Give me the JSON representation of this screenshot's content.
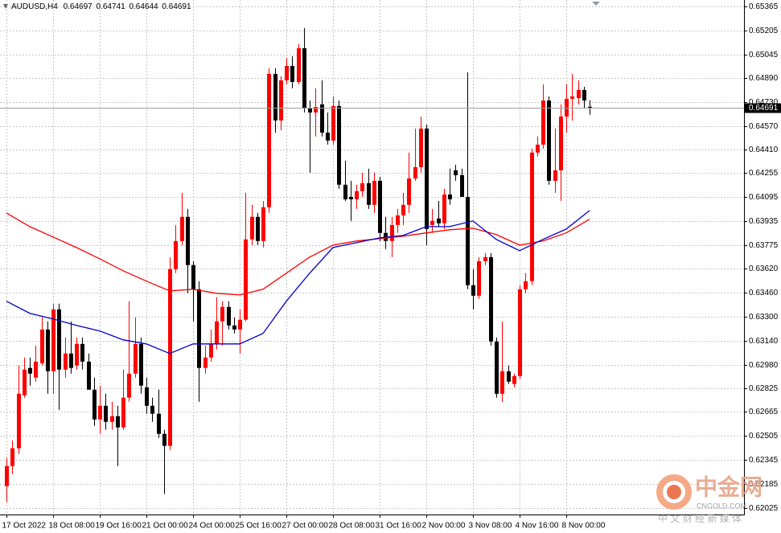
{
  "chart_data": {
    "type": "candlestick",
    "title": "AUDUSD,H4",
    "categories": [
      "17 Oct 2022",
      null,
      null,
      null,
      null,
      null,
      null,
      null,
      "18 Oct 08:00",
      null,
      null,
      null,
      null,
      null,
      null,
      null,
      "19 Oct 16:00",
      null,
      null,
      null,
      null,
      null,
      null,
      null,
      "21 Oct 00:00",
      null,
      null,
      null,
      null,
      null,
      null,
      null,
      "24 Oct 00:00",
      null,
      null,
      null,
      null,
      null,
      null,
      null,
      "25 Oct 16:00",
      null,
      null,
      null,
      null,
      null,
      null,
      null,
      "27 Oct 00:00",
      null,
      null,
      null,
      null,
      null,
      null,
      null,
      "28 Oct 08:00",
      null,
      null,
      null,
      null,
      null,
      null,
      null,
      "31 Oct 16:00",
      null,
      null,
      null,
      null,
      null,
      null,
      null,
      "2 Nov 00:00",
      null,
      null,
      null,
      null,
      null,
      null,
      null,
      "3 Nov 08:00",
      null,
      null,
      null,
      null,
      null,
      null,
      null,
      "4 Nov 16:00",
      null,
      null,
      null,
      null,
      null,
      null,
      null,
      "8 Nov 00:00",
      null,
      null,
      null,
      null
    ],
    "open": [
      0.62171,
      0.62305,
      0.62423,
      0.62776,
      0.62958,
      0.62893,
      0.6299,
      0.63214,
      0.62936,
      0.63348,
      0.62947,
      0.63054,
      0.62974,
      0.63118,
      0.63,
      0.62813,
      0.62615,
      0.62706,
      0.62599,
      0.62637,
      0.62562,
      0.6276,
      0.6292,
      0.63118,
      0.62829,
      0.62706,
      0.62653,
      0.62519,
      0.62439,
      0.63616,
      0.63803,
      0.63964,
      0.63643,
      0.63482,
      0.62958,
      0.63027,
      0.63118,
      0.63268,
      0.63364,
      0.63241,
      0.63214,
      0.63279,
      0.63814,
      0.63964,
      0.63803,
      0.64028,
      0.64916,
      0.64606,
      0.64873,
      0.64969,
      0.64862,
      0.65087,
      0.64686,
      0.64659,
      0.64713,
      0.64525,
      0.64472,
      0.64702,
      0.64178,
      0.64097,
      0.64081,
      0.64135,
      0.64188,
      0.64044,
      0.64204,
      0.63857,
      0.63803,
      0.6391,
      0.63974,
      0.64044,
      0.6422,
      0.64295,
      0.64552,
      0.6391,
      0.63953,
      0.63921,
      0.64113,
      0.64274,
      0.64242,
      0.64097,
      0.63509,
      0.63439,
      0.63669,
      0.63696,
      0.63134,
      0.62786,
      0.62936,
      0.62851,
      0.62904,
      0.63482,
      0.63536,
      0.64392,
      0.64445,
      0.64739,
      0.64204,
      0.64274,
      0.64632,
      0.6475,
      0.64755,
      0.64809,
      0.64697
    ],
    "high": [
      0.62358,
      0.62476,
      0.62974,
      0.63027,
      0.63027,
      0.63107,
      0.63295,
      0.63268,
      0.63386,
      0.63386,
      0.63161,
      0.63268,
      0.63161,
      0.63161,
      0.63054,
      0.62893,
      0.6284,
      0.62786,
      0.62733,
      0.62706,
      0.62947,
      0.63402,
      0.63295,
      0.63161,
      0.62893,
      0.6276,
      0.62813,
      0.62546,
      0.63696,
      0.6391,
      0.64124,
      0.64017,
      0.63669,
      0.63536,
      0.63107,
      0.63214,
      0.63429,
      0.63402,
      0.63402,
      0.63295,
      0.63348,
      0.64124,
      0.64044,
      0.6399,
      0.6407,
      0.64953,
      0.64953,
      0.649,
      0.65023,
      0.65034,
      0.65114,
      0.65221,
      0.64739,
      0.6482,
      0.64873,
      0.64659,
      0.64766,
      0.64739,
      0.64338,
      0.64204,
      0.64178,
      0.64258,
      0.64285,
      0.64258,
      0.64231,
      0.63964,
      0.63964,
      0.64017,
      0.64124,
      0.64392,
      0.64552,
      0.64632,
      0.64579,
      0.64017,
      0.6407,
      0.64151,
      0.64285,
      0.64311,
      0.64285,
      0.64926,
      0.63616,
      0.63696,
      0.63723,
      0.63723,
      0.63161,
      0.63268,
      0.62974,
      0.6292,
      0.63509,
      0.63589,
      0.64418,
      0.64499,
      0.64846,
      0.64766,
      0.64552,
      0.64713,
      0.64846,
      0.64916,
      0.64873,
      0.6483,
      0.64741
    ],
    "low": [
      0.62064,
      0.62251,
      0.62385,
      0.6276,
      0.6284,
      0.62867,
      0.62974,
      0.62786,
      0.62786,
      0.62679,
      0.62893,
      0.6292,
      0.62947,
      0.62947,
      0.6284,
      0.62572,
      0.62519,
      0.62546,
      0.62546,
      0.62305,
      0.62546,
      0.62733,
      0.62893,
      0.62786,
      0.62653,
      0.62599,
      0.62492,
      0.62118,
      0.62412,
      0.63589,
      0.63776,
      0.63455,
      0.63268,
      0.62733,
      0.6292,
      0.63,
      0.63081,
      0.63107,
      0.63214,
      0.63188,
      0.63054,
      0.63268,
      0.63776,
      0.63776,
      0.6376,
      0.6399,
      0.64525,
      0.64541,
      0.64846,
      0.6482,
      0.64846,
      0.64659,
      0.64258,
      0.64499,
      0.64499,
      0.64445,
      0.64445,
      0.64151,
      0.6407,
      0.63937,
      0.64017,
      0.64097,
      0.64017,
      0.6399,
      0.63803,
      0.6375,
      0.63696,
      0.63857,
      0.6391,
      0.6399,
      0.64204,
      0.64258,
      0.63776,
      0.63857,
      0.63899,
      0.63883,
      0.64044,
      0.64204,
      0.64097,
      0.63482,
      0.63348,
      0.63418,
      0.63643,
      0.63107,
      0.6276,
      0.62733,
      0.62851,
      0.62829,
      0.62883,
      0.63455,
      0.63509,
      0.64365,
      0.64418,
      0.64178,
      0.64124,
      0.6407,
      0.64525,
      0.64606,
      0.64713,
      0.64686,
      0.64644
    ],
    "close": [
      0.62305,
      0.62423,
      0.62786,
      0.62947,
      0.6292,
      0.63,
      0.63214,
      0.62936,
      0.63348,
      0.62947,
      0.63054,
      0.62958,
      0.63118,
      0.63,
      0.62813,
      0.62615,
      0.62706,
      0.62599,
      0.62637,
      0.62562,
      0.6276,
      0.6292,
      0.63118,
      0.6284,
      0.62706,
      0.62653,
      0.62519,
      0.62439,
      0.63616,
      0.63803,
      0.63964,
      0.63643,
      0.63482,
      0.62958,
      0.63027,
      0.63118,
      0.63268,
      0.63364,
      0.63241,
      0.63214,
      0.63279,
      0.63814,
      0.63964,
      0.63803,
      0.64028,
      0.64916,
      0.64606,
      0.64873,
      0.64969,
      0.64862,
      0.65087,
      0.64686,
      0.64659,
      0.64696,
      0.64525,
      0.64472,
      0.64702,
      0.64178,
      0.64081,
      0.64081,
      0.64135,
      0.64188,
      0.64044,
      0.64204,
      0.63857,
      0.63803,
      0.6391,
      0.63974,
      0.64044,
      0.6422,
      0.64295,
      0.64552,
      0.63883,
      0.63937,
      0.63921,
      0.64113,
      0.64081,
      0.64242,
      0.64097,
      0.63509,
      0.63439,
      0.63669,
      0.63696,
      0.63134,
      0.62786,
      0.62936,
      0.62867,
      0.62904,
      0.63482,
      0.63536,
      0.64392,
      0.64445,
      0.64739,
      0.64204,
      0.64274,
      0.64632,
      0.6475,
      0.64766,
      0.64809,
      0.64739,
      0.64691
    ],
    "up_color": "#ff0000",
    "down_color": "#000000",
    "series": [
      {
        "color": "#ff0000",
        "x": [
          0,
          4,
          8,
          12,
          16,
          20,
          24,
          28,
          32,
          36,
          40,
          44,
          48,
          52,
          56,
          60,
          64,
          68,
          72,
          76,
          80,
          84,
          88,
          92,
          96,
          100
        ],
        "values": [
          0.6399,
          0.63899,
          0.6383,
          0.6376,
          0.63685,
          0.63605,
          0.63536,
          0.63471,
          0.63482,
          0.63455,
          0.63444,
          0.63482,
          0.63589,
          0.63696,
          0.63776,
          0.63803,
          0.63819,
          0.63835,
          0.63857,
          0.63878,
          0.63889,
          0.63846,
          0.63776,
          0.63803,
          0.63857,
          0.63948
        ]
      },
      {
        "color": "#0000cc",
        "x": [
          0,
          4,
          8,
          12,
          16,
          20,
          24,
          28,
          32,
          36,
          40,
          44,
          48,
          52,
          56,
          60,
          64,
          68,
          72,
          76,
          80,
          84,
          88,
          92,
          96,
          100
        ],
        "values": [
          0.63402,
          0.63322,
          0.63284,
          0.63241,
          0.63204,
          0.63145,
          0.63118,
          0.63054,
          0.63118,
          0.63118,
          0.63118,
          0.63188,
          0.63402,
          0.63589,
          0.6376,
          0.63792,
          0.63824,
          0.6384,
          0.63899,
          0.63899,
          0.63937,
          0.63814,
          0.63739,
          0.63814,
          0.63883,
          0.64006
        ]
      }
    ],
    "ylim": [
      0.61982,
      0.65408
    ],
    "yticks": [
      0.65365,
      0.65205,
      0.65045,
      {
        "value": 0.6489,
        "label": "0.64890"
      },
      {
        "value": 0.6473,
        "label": "0.64730"
      },
      {
        "value": 0.6457,
        "label": "0.64570"
      },
      {
        "value": 0.6441,
        "label": "0.64410"
      },
      0.64255,
      0.64095,
      0.63935,
      0.63775,
      {
        "value": 0.6362,
        "label": "0.63620"
      },
      {
        "value": 0.6346,
        "label": "0.63460"
      },
      {
        "value": 0.633,
        "label": "0.63300"
      },
      {
        "value": 0.6314,
        "label": "0.63140"
      },
      {
        "value": 0.6298,
        "label": "0.62980"
      },
      0.62825,
      0.62665,
      0.62505,
      0.62345,
      0.62185,
      0.62025
    ],
    "grid": true
  },
  "watermark": {
    "logo": "中金网",
    "url": "CNGOLD.COM",
    "slogan": "中 文 财 经 新 媒 体"
  }
}
